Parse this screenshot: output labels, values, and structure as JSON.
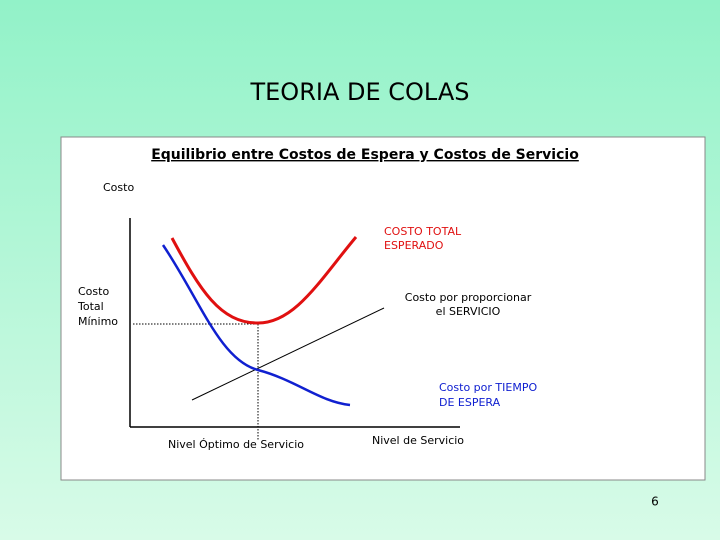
{
  "header": {
    "title": "TEORIA DE COLAS"
  },
  "diagram": {
    "subtitle": "Equilibrio entre Costos de Espera y Costos de Servicio",
    "y_axis_label": "Costo",
    "x_axis_label": "Nivel de Servicio",
    "min_cost_label": [
      "Costo",
      "Total",
      "Mínimo"
    ],
    "optimum_label": "Nivel Óptimo de Servicio",
    "total_cost_label": [
      "COSTO TOTAL",
      "ESPERADO"
    ],
    "service_cost_label": [
      "Costo por proporcionar",
      "el SERVICIO"
    ],
    "waiting_cost_label": [
      "Costo por TIEMPO",
      "DE ESPERA"
    ]
  },
  "footer": {
    "page_number": "6"
  }
}
